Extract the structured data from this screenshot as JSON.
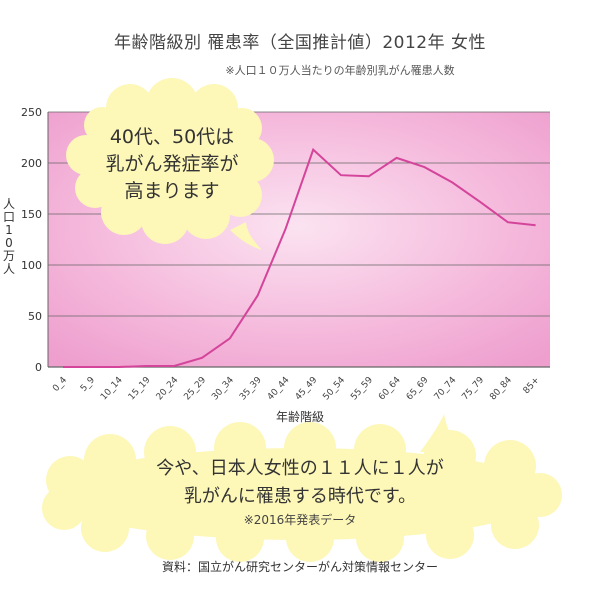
{
  "header": {
    "title": "年齢階級別 罹患率（全国推計値）2012年 女性",
    "subtitle": "※人口１０万人当たりの年齢別乳がん罹患人数"
  },
  "callout_top": {
    "line1": "40代、50代は",
    "line2": "乳がん発症率が",
    "line3": "高まります"
  },
  "callout_bottom": {
    "line1": "今や、日本人女性の１１人に１人が",
    "line2": "乳がんに罹患する時代です。",
    "note": "※2016年発表データ"
  },
  "footer": {
    "source": "資料：国立がん研究センターがん対策情報センター"
  },
  "colors": {
    "line": "#d4449a",
    "plot_bg": "#f6b7dc",
    "bubble": "#fdf7b8",
    "grid": "#666666"
  },
  "chart_data": {
    "type": "line",
    "title": "年齢階級別 罹患率（全国推計値）2012年 女性",
    "xlabel": "年齢階級",
    "ylabel": "人口10万人",
    "ylim": [
      0,
      250
    ],
    "yticks": [
      0,
      50,
      100,
      150,
      200,
      250
    ],
    "grid": true,
    "categories": [
      "0_4",
      "5_9",
      "10_14",
      "15_19",
      "20_24",
      "25_29",
      "30_34",
      "35_39",
      "40_44",
      "45_49",
      "50_54",
      "55_59",
      "60_64",
      "65_69",
      "70_74",
      "75_79",
      "80_84",
      "85+"
    ],
    "values": [
      0,
      0,
      0,
      1,
      1,
      9,
      28,
      70,
      135,
      213,
      188,
      187,
      205,
      196,
      181,
      162,
      142,
      139
    ]
  }
}
